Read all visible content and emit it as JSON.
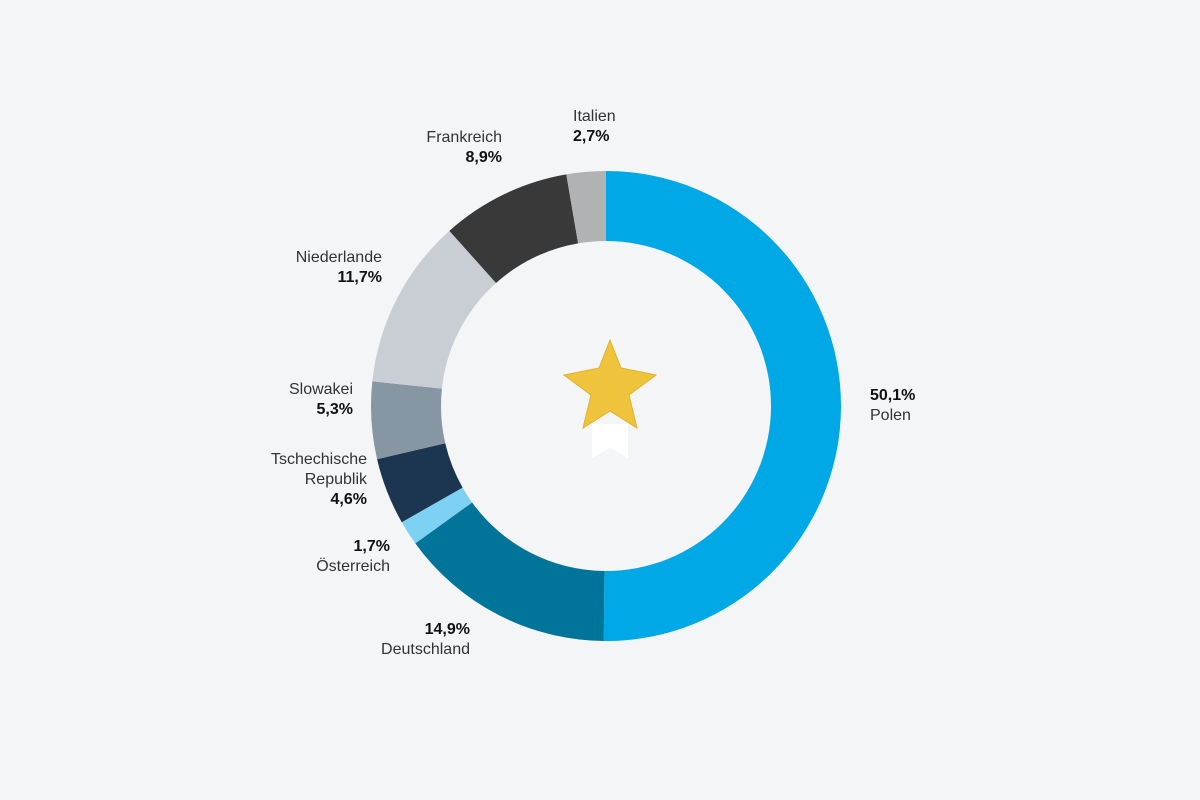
{
  "chart_data": {
    "type": "pie",
    "donut": true,
    "slices": [
      {
        "name": "Polen",
        "value": 50.1,
        "label": "50,1%",
        "color": "#00a8e6"
      },
      {
        "name": "Deutschland",
        "value": 14.9,
        "label": "14,9%",
        "color": "#007599"
      },
      {
        "name": "Österreich",
        "value": 1.7,
        "label": "1,7%",
        "color": "#7dd1f2"
      },
      {
        "name": "Tschechische Republik",
        "name_lines": [
          "Tschechische",
          "Republik"
        ],
        "value": 4.6,
        "label": "4,6%",
        "color": "#1c3651"
      },
      {
        "name": "Slowakei",
        "value": 5.3,
        "label": "5,3%",
        "color": "#8796a3"
      },
      {
        "name": "Niederlande",
        "value": 11.7,
        "label": "11,7%",
        "color": "#c8ced4"
      },
      {
        "name": "Frankreich",
        "value": 8.9,
        "label": "8,9%",
        "color": "#393939"
      },
      {
        "name": "Italien",
        "value": 2.7,
        "label": "2,7%",
        "color": "#b0b2b4"
      }
    ],
    "center_icon": "star-ribbon-icon"
  }
}
